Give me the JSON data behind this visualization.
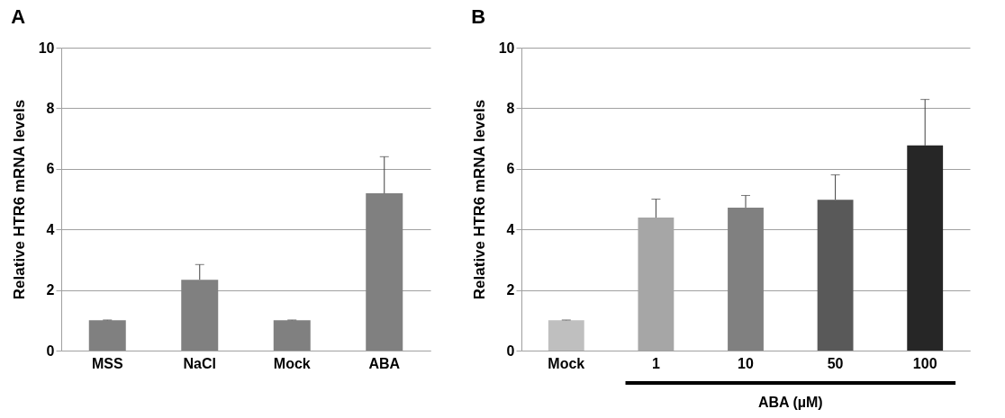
{
  "chart_data": [
    {
      "type": "bar",
      "title": "A",
      "ylabel": "Relative HTR6 mRNA levels",
      "categories": [
        "MSS",
        "NaCl",
        "Mock",
        "ABA"
      ],
      "values": [
        1.0,
        2.34,
        1.0,
        5.19
      ],
      "colors": [
        "#808080",
        "#808080",
        "#808080",
        "#808080"
      ],
      "errors": [
        [
          1.0,
          1.01
        ],
        [
          2.34,
          2.84
        ],
        [
          1.0,
          1.01
        ],
        [
          5.19,
          6.4
        ]
      ],
      "ylim": [
        0,
        10
      ],
      "yticks": [
        0,
        2,
        4,
        6,
        8,
        10
      ],
      "grid": "y"
    },
    {
      "type": "bar",
      "title": "B",
      "ylabel": "Relative HTR6 mRNA levels",
      "xlabel": "ABA (µM)",
      "categories": [
        "Mock",
        "1",
        "10",
        "50",
        "100"
      ],
      "values": [
        1.0,
        4.39,
        4.72,
        4.98,
        6.77
      ],
      "colors": [
        "#bfbfbf",
        "#a6a6a6",
        "#808080",
        "#595959",
        "#262626"
      ],
      "errors": [
        [
          1.0,
          1.01
        ],
        [
          4.39,
          5.0
        ],
        [
          4.72,
          5.12
        ],
        [
          4.98,
          5.8
        ],
        [
          6.77,
          8.29
        ]
      ],
      "ylim": [
        0,
        10
      ],
      "yticks": [
        0,
        2,
        4,
        6,
        8,
        10
      ],
      "grid": "y"
    }
  ]
}
